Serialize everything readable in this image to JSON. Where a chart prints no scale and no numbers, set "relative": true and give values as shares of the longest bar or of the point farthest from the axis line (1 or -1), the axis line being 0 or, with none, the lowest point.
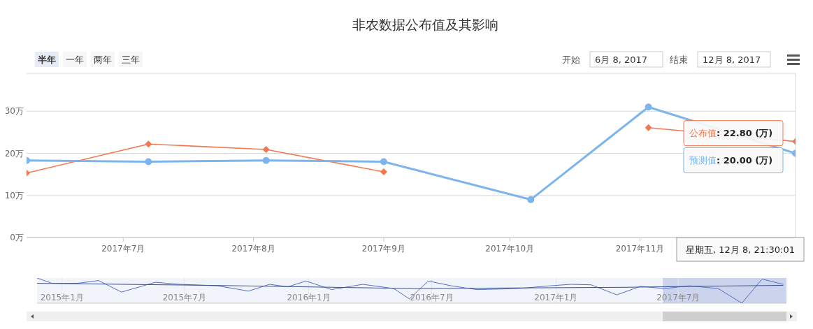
{
  "chart_data": [
    {
      "type": "line",
      "title": "非农数据公布值及其影响",
      "x": [
        "2017-06-08",
        "2017-07-07",
        "2017-08-04",
        "2017-09-01",
        "2017-10-06",
        "2017-11-03",
        "2017-12-08"
      ],
      "series": [
        {
          "name": "公布值",
          "color": "#f4784f",
          "marker": "diamond",
          "values": [
            15.3,
            22.2,
            20.9,
            15.6,
            null,
            26.1,
            22.8
          ]
        },
        {
          "name": "预测值",
          "color": "#7cb5ec",
          "marker": "circle",
          "values": [
            18.3,
            18.0,
            18.3,
            18.0,
            9.0,
            31.0,
            20.0
          ]
        }
      ],
      "xlim": [
        "2017-06-08",
        "2017-12-08"
      ],
      "xticks": [
        {
          "value": "2017-07-01",
          "label": "2017年7月"
        },
        {
          "value": "2017-08-01",
          "label": "2017年8月"
        },
        {
          "value": "2017-09-01",
          "label": "2017年9月"
        },
        {
          "value": "2017-10-01",
          "label": "2017年10月"
        },
        {
          "value": "2017-11-01",
          "label": "2017年11月"
        }
      ],
      "ylim": [
        0,
        39
      ],
      "yticks": [
        {
          "value": 0,
          "label": "0万"
        },
        {
          "value": 10,
          "label": "10万"
        },
        {
          "value": 20,
          "label": "20万"
        },
        {
          "value": 30,
          "label": "30万"
        }
      ],
      "grid": "y",
      "legend": false,
      "annotations": [
        {
          "text": ": 22.80 (万)",
          "x": "2017-12-08",
          "y": 22.8
        },
        {
          "text": ": 20.00 (万)",
          "x": "2017-12-08",
          "y": 20.0
        },
        "星期五, 12月 8, 21:30:01"
      ]
    },
    {
      "type": "other",
      "annotations": [
        "半年",
        "一年",
        "两年",
        "三年",
        "开始",
        "6月 8, 2017",
        "结束",
        "12月 8, 2017"
      ]
    },
    {
      "type": "line",
      "relative": true,
      "tick_labels": "x",
      "grid": "x",
      "legend": false,
      "xlim": [
        "2014-11-25",
        "2017-12-08"
      ],
      "xticks": [
        {
          "value": "2015-01-01",
          "label": "2015年1月"
        },
        {
          "value": "2015-07-01",
          "label": "2015年7月"
        },
        {
          "value": "2016-01-01",
          "label": "2016年1月"
        },
        {
          "value": "2016-07-01",
          "label": "2016年7月"
        },
        {
          "value": "2017-01-01",
          "label": "2017年1月"
        },
        {
          "value": "2017-07-01",
          "label": "2017年7月"
        }
      ],
      "bands": [
        {
          "axis": "x",
          "from": "2017-06-08",
          "to": "2017-12-08",
          "color": "#c7d0ea"
        }
      ],
      "series": [
        {
          "color": "#5470c0",
          "x": [
            "2014-11-25",
            "2014-12-17",
            "2015-01-24",
            "2015-02-24",
            "2015-03-30",
            "2015-05-19",
            "2015-06-23",
            "2015-08-19",
            "2015-10-04",
            "2015-11-04",
            "2015-12-01",
            "2015-12-28",
            "2016-02-04",
            "2016-03-21",
            "2016-05-06",
            "2016-05-29",
            "2016-06-26",
            "2016-07-30",
            "2016-09-06",
            "2016-11-06",
            "2016-12-23",
            "2017-01-23",
            "2017-02-22",
            "2017-04-01",
            "2017-05-06",
            "2017-06-10",
            "2017-07-18",
            "2017-08-29",
            "2017-10-03",
            "2017-11-02",
            "2017-12-03"
          ],
          "values": [
            1,
            0.79,
            0.79,
            0.9,
            0.44,
            0.83,
            0.75,
            0.69,
            0.48,
            0.75,
            0.65,
            0.88,
            0.54,
            0.75,
            0.58,
            0.17,
            0.88,
            0.69,
            0.54,
            0.58,
            0.69,
            0.75,
            0.73,
            0.33,
            0.67,
            0.58,
            0.69,
            0.58,
            0,
            0.96,
            0.75
          ]
        },
        {
          "color": "#3a4f8f",
          "x": [
            "2014-11-25",
            "2015-08-04",
            "2016-06-05",
            "2017-04-08",
            "2017-12-03"
          ],
          "values": [
            0.79,
            0.71,
            0.58,
            0.63,
            0.71
          ]
        }
      ]
    }
  ]
}
